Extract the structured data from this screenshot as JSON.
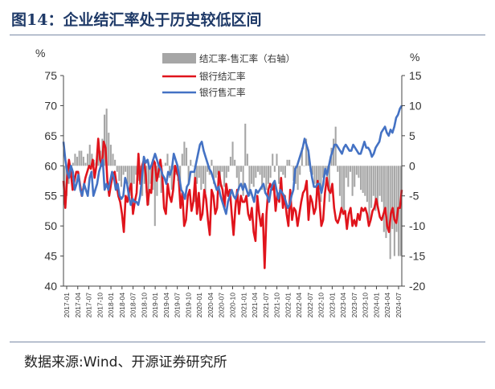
{
  "figure": {
    "title": "图14：企业结汇率处于历史较低区间",
    "source": "数据来源:Wind、开源证券研究所"
  },
  "chart_data": {
    "type": "bar+line",
    "left_axis": {
      "unit": "%",
      "ticks": [
        40,
        45,
        50,
        55,
        60,
        65,
        70,
        75
      ],
      "range": [
        40,
        75
      ]
    },
    "right_axis": {
      "unit": "%",
      "ticks": [
        -20,
        -15,
        -10,
        -5,
        0,
        5,
        10,
        15
      ],
      "range": [
        -20,
        15
      ]
    },
    "x_labels": [
      "2017-01",
      "2017-04",
      "2017-07",
      "2017-10",
      "2018-01",
      "2018-04",
      "2018-07",
      "2018-10",
      "2019-01",
      "2019-04",
      "2019-07",
      "2019-10",
      "2020-01",
      "2020-04",
      "2020-07",
      "2020-10",
      "2021-01",
      "2021-04",
      "2021-07",
      "2021-10",
      "2022-01",
      "2022-04",
      "2022-07",
      "2022-10",
      "2023-01",
      "2023-04",
      "2023-07",
      "2023-10",
      "2024-01",
      "2024-04",
      "2024-07"
    ],
    "legend": [
      "结汇率-售汇率（右轴）",
      "银行结汇率",
      "银行售汇率"
    ],
    "legend_position": "top-center",
    "colors": {
      "diff": "#a6a6a6",
      "settle": "#e0141c",
      "sale": "#4472c4"
    },
    "series": [
      {
        "name": "结汇率-售汇率（右轴）",
        "axis": "right",
        "type": "bar",
        "values": [
          -6.5,
          -5,
          -3,
          -1,
          0.5,
          2,
          1.5,
          2.5,
          2.5,
          1.5,
          0.5,
          2,
          3.5,
          2,
          1,
          0.5,
          2.5,
          2.5,
          4.5,
          8.5,
          9.5,
          5.5,
          3.5,
          2,
          1,
          -1,
          -2.5,
          -3.5,
          -1.5,
          -1,
          -3,
          -5,
          -4,
          -3,
          -1.5,
          -2.5,
          -3,
          -5,
          -3,
          -4.5,
          -6.5,
          -3,
          -4,
          -10,
          -5,
          -2,
          -4.5,
          0,
          0.5,
          2,
          -2,
          -4,
          -2,
          -1.5,
          -2.5,
          -3,
          2,
          4,
          3,
          -3,
          1,
          0,
          -6,
          -3,
          -2,
          -4,
          -3,
          -4.5,
          -1,
          -1.5,
          1,
          -3,
          -2,
          -1.5,
          -3.5,
          -1,
          -3.5,
          -2,
          -1,
          1.5,
          4,
          1,
          -2,
          -4,
          -1,
          -5,
          7,
          2,
          -5,
          -3,
          -3.5,
          -2,
          -1,
          -1.5,
          -4,
          -2,
          -4,
          -3,
          -2,
          2,
          -1,
          2,
          -3,
          -1,
          -1.5,
          -2,
          1,
          1,
          0,
          -2.5,
          -3,
          -4,
          -1.5,
          3,
          0,
          4.5,
          2,
          -1,
          -1.5,
          -3,
          -6,
          -4,
          -6,
          -2,
          -1,
          -3,
          -6,
          3,
          4.5,
          6.5,
          -1,
          -5,
          -7,
          -8,
          -2,
          -3.5,
          -1,
          -5,
          -3.5,
          -1.5,
          -2,
          -4,
          -4.5,
          -5,
          -6,
          -9,
          -7,
          -5,
          -7.5,
          -7,
          -5,
          -6,
          -11,
          -12,
          -10,
          -15.5,
          -10.5,
          -15,
          -11,
          -15,
          -15
        ]
      },
      {
        "name": "银行结汇率",
        "axis": "left",
        "type": "line",
        "values": [
          57.5,
          53,
          58,
          61,
          59,
          56,
          57.5,
          59,
          59,
          57,
          55,
          56.5,
          58,
          59,
          60,
          59.5,
          61,
          58,
          60,
          64.5,
          61,
          60,
          64,
          63,
          57.5,
          55,
          57,
          58.5,
          59,
          57,
          55,
          54,
          52,
          49,
          55,
          54,
          56,
          57,
          52,
          54,
          55.5,
          62,
          57,
          60,
          61,
          58.5,
          53.5,
          56,
          55.5,
          61,
          60.5,
          57.5,
          59,
          61,
          58.5,
          53,
          52,
          57,
          55,
          54,
          56,
          60,
          59,
          58,
          53,
          55.5,
          50,
          51,
          55,
          56,
          52.5,
          54,
          58,
          52,
          55.5,
          51,
          52,
          56,
          54.5,
          51,
          48.5,
          56,
          55,
          52,
          53,
          59,
          57,
          56,
          53,
          57,
          55,
          56,
          52,
          48.5,
          53,
          56,
          52,
          55,
          54,
          54,
          55,
          52,
          51,
          53,
          49,
          47.5,
          55,
          52,
          50,
          52,
          43,
          52,
          56,
          57,
          56,
          57,
          52.5,
          55.5,
          54,
          58,
          53,
          55,
          52,
          50,
          56,
          51,
          53,
          52.5,
          50,
          52,
          54,
          55.5,
          56,
          57.5,
          51,
          55,
          54,
          52,
          53,
          57.5,
          54,
          50,
          51,
          55.5,
          58,
          56,
          55.5,
          57,
          53,
          51,
          50.5,
          51.5,
          53,
          52,
          52.5,
          49.5,
          52,
          53,
          50,
          51,
          50,
          52,
          51,
          53,
          52.5,
          53,
          52,
          50,
          51,
          52.5,
          53,
          54.5,
          53,
          51.5,
          51,
          52,
          53,
          50,
          49,
          52,
          53,
          51,
          50.5,
          53,
          53,
          56
        ]
      },
      {
        "name": "银行售汇率",
        "axis": "left",
        "type": "line",
        "values": [
          64,
          61,
          59,
          58,
          60,
          59,
          56,
          57,
          58.5,
          56,
          55,
          57,
          56,
          55,
          58,
          59,
          55,
          56,
          57,
          59,
          60,
          61,
          56,
          57,
          56,
          57.5,
          59,
          58,
          56,
          57,
          55,
          54.5,
          55,
          58,
          57,
          55,
          53.5,
          54.5,
          54,
          54,
          53.5,
          55,
          58,
          61.5,
          60.5,
          61,
          59.5,
          60,
          61,
          62,
          61,
          60,
          59.5,
          58.5,
          58,
          57,
          59,
          58.5,
          59.5,
          62,
          61,
          60,
          58,
          56,
          55.5,
          54.5,
          56.5,
          57,
          59,
          59,
          59,
          60.5,
          62,
          63.5,
          64,
          62.5,
          61.5,
          60.5,
          59.5,
          59,
          58,
          57,
          56,
          56.5,
          55,
          54,
          53,
          52,
          54,
          55,
          56,
          55,
          54.5,
          55.5,
          56.5,
          57,
          56,
          57,
          56,
          55,
          56,
          55,
          54,
          56,
          55.5,
          56,
          56.5,
          57,
          55.5,
          55,
          54,
          56,
          57,
          57.5,
          56,
          54.5,
          56,
          55.5,
          55,
          54,
          53,
          53.5,
          55,
          56,
          59.5,
          60,
          61,
          62,
          63,
          64.5,
          63.5,
          62.5,
          60,
          58,
          56.5,
          56.5,
          57,
          57,
          55.5,
          57,
          59.5,
          58.5,
          60,
          61.5,
          62.5,
          63.5,
          63.5,
          63,
          62.5,
          62,
          63,
          63.5,
          63,
          62.5,
          62.5,
          63.5,
          63,
          62.5,
          62,
          62,
          63,
          64,
          63,
          63,
          62.5,
          61.5,
          62,
          63,
          63.5,
          64,
          65.5,
          66,
          66.5,
          65.5,
          65,
          66,
          65.5,
          66.5,
          68,
          68.5,
          69.5,
          70
        ]
      }
    ]
  }
}
